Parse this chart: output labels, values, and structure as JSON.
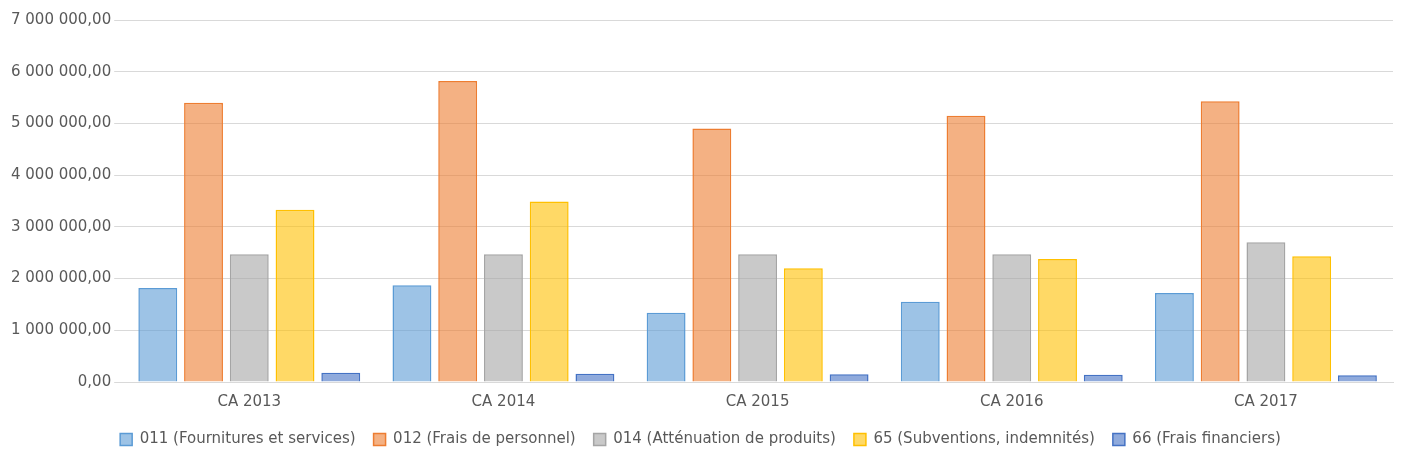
{
  "chart_data": {
    "type": "bar",
    "categories": [
      "CA 2013",
      "CA 2014",
      "CA 2015",
      "CA 2016",
      "CA 2017"
    ],
    "series": [
      {
        "name": "011 (Fournitures et services)",
        "color": "#5b9bd5",
        "values": [
          1820000,
          1870000,
          1340000,
          1550000,
          1720000
        ]
      },
      {
        "name": "012 (Frais de personnel)",
        "color": "#ed7d31",
        "values": [
          5400000,
          5820000,
          4900000,
          5150000,
          5430000
        ]
      },
      {
        "name": "014 (Atténuation de produits)",
        "color": "#a5a5a5",
        "values": [
          2470000,
          2470000,
          2470000,
          2470000,
          2700000
        ]
      },
      {
        "name": "65 (Subventions, indemnités)",
        "color": "#ffc000",
        "values": [
          3330000,
          3490000,
          2200000,
          2380000,
          2430000
        ]
      },
      {
        "name": "66 (Frais financiers)",
        "color": "#4472c4",
        "values": [
          180000,
          160000,
          150000,
          140000,
          130000
        ]
      }
    ],
    "ylim": [
      0,
      7000000
    ],
    "yticks": [
      {
        "value": 0,
        "label": "0,00"
      },
      {
        "value": 1000000,
        "label": "1 000 000,00"
      },
      {
        "value": 2000000,
        "label": "2 000 000,00"
      },
      {
        "value": 3000000,
        "label": "3 000 000,00"
      },
      {
        "value": 4000000,
        "label": "4 000 000,00"
      },
      {
        "value": 5000000,
        "label": "5 000 000,00"
      },
      {
        "value": 6000000,
        "label": "6 000 000,00"
      },
      {
        "value": 7000000,
        "label": "7 000 000,00"
      }
    ],
    "grid": "y",
    "legend": "bottom"
  }
}
